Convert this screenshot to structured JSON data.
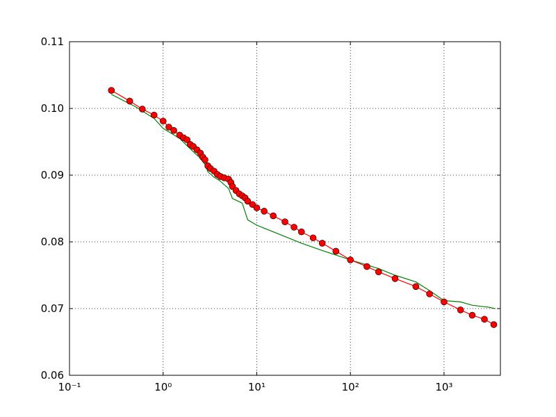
{
  "chart_data": {
    "type": "line",
    "xscale": "log",
    "grid": true,
    "xlim": [
      0.1,
      4000
    ],
    "ylim": [
      0.06,
      0.11
    ],
    "xticks": [
      {
        "value": 0.1,
        "label": "10⁻¹"
      },
      {
        "value": 1,
        "label": "10⁰"
      },
      {
        "value": 10,
        "label": "10¹"
      },
      {
        "value": 100,
        "label": "10²"
      },
      {
        "value": 1000,
        "label": "10³"
      }
    ],
    "yticks": [
      0.06,
      0.07,
      0.08,
      0.09,
      {
        "value": 0.1,
        "label": "0.10"
      },
      0.11
    ],
    "series": [
      {
        "color": "#008000",
        "marker": false,
        "x": [
          0.28,
          0.5,
          0.8,
          1.0,
          1.5,
          2.0,
          2.5,
          2.8,
          3.0,
          3.5,
          4.0,
          5.0,
          5.5,
          7,
          8,
          10,
          15,
          20,
          30,
          50,
          100,
          200,
          300,
          500,
          700,
          1000,
          1500,
          2000,
          3000,
          3500
        ],
        "values": [
          0.1021,
          0.1003,
          0.0985,
          0.097,
          0.0955,
          0.0938,
          0.0925,
          0.0916,
          0.0905,
          0.0897,
          0.0892,
          0.088,
          0.0865,
          0.0858,
          0.0833,
          0.0825,
          0.0815,
          0.0808,
          0.0798,
          0.0787,
          0.0773,
          0.076,
          0.075,
          0.074,
          0.0727,
          0.0712,
          0.071,
          0.0705,
          0.0702,
          0.07
        ]
      },
      {
        "color": "#ff0000",
        "marker": true,
        "x": [
          0.28,
          0.44,
          0.6,
          0.8,
          1.0,
          1.15,
          1.3,
          1.5,
          1.65,
          1.8,
          1.95,
          2.1,
          2.3,
          2.5,
          2.65,
          2.8,
          3.0,
          3.2,
          3.5,
          3.8,
          4.1,
          4.5,
          5.0,
          5.3,
          5.5,
          6.0,
          6.5,
          7.0,
          7.5,
          8.0,
          9,
          10,
          12,
          15,
          20,
          25,
          30,
          40,
          50,
          70,
          100,
          150,
          200,
          300,
          500,
          700,
          1000,
          1500,
          2000,
          2700,
          3400
        ],
        "values": [
          0.1027,
          0.1011,
          0.0999,
          0.099,
          0.0981,
          0.0972,
          0.0967,
          0.096,
          0.0956,
          0.0953,
          0.0946,
          0.0943,
          0.0938,
          0.0933,
          0.0927,
          0.0923,
          0.0914,
          0.091,
          0.0906,
          0.0901,
          0.0898,
          0.0896,
          0.0894,
          0.0889,
          0.0883,
          0.0877,
          0.0872,
          0.0869,
          0.0866,
          0.0861,
          0.0856,
          0.0851,
          0.0846,
          0.0839,
          0.083,
          0.0822,
          0.0815,
          0.0806,
          0.0798,
          0.0786,
          0.0773,
          0.0763,
          0.0755,
          0.0745,
          0.0733,
          0.0722,
          0.071,
          0.0698,
          0.069,
          0.0684,
          0.0676
        ]
      }
    ]
  }
}
